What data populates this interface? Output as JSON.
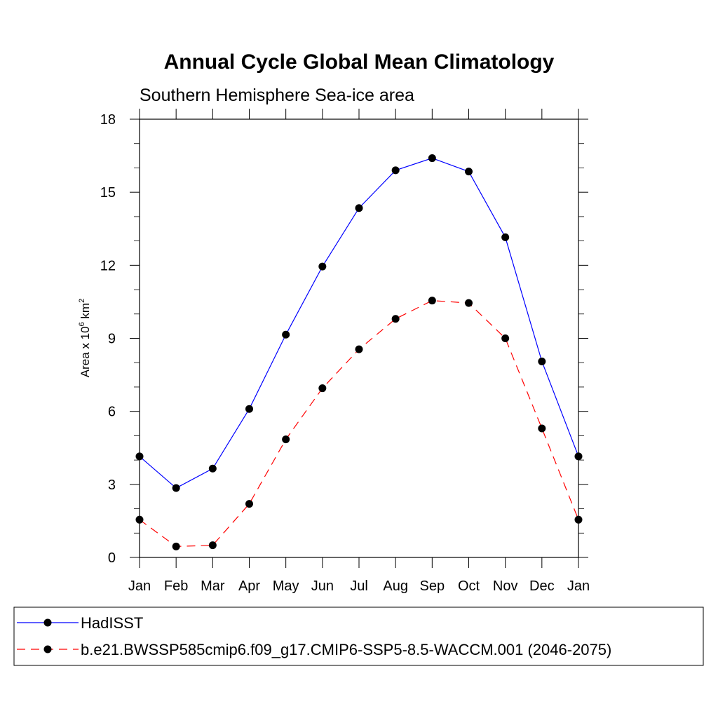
{
  "chart_data": {
    "type": "line",
    "title": "Annual Cycle Global Mean Climatology",
    "subtitle": "Southern Hemisphere Sea-ice area",
    "ylabel": {
      "prefix": "Area x 10",
      "exp1": "6",
      "middle": " km",
      "exp2": "2"
    },
    "xlabel": "",
    "categories": [
      "Jan",
      "Feb",
      "Mar",
      "Apr",
      "May",
      "Jun",
      "Jul",
      "Aug",
      "Sep",
      "Oct",
      "Nov",
      "Dec",
      "Jan"
    ],
    "ylim": [
      0,
      18
    ],
    "yticks": [
      0,
      3,
      6,
      9,
      12,
      15,
      18
    ],
    "ytick_labels": [
      "0",
      "3",
      "6",
      "9",
      "12",
      "15",
      "18"
    ],
    "grid": false,
    "legend_position": "bottom",
    "series": [
      {
        "name": "HadISST",
        "color": "#0000ff",
        "dash": "solid",
        "values": [
          4.15,
          2.85,
          3.65,
          6.1,
          9.15,
          11.95,
          14.35,
          15.9,
          16.4,
          15.85,
          13.15,
          8.05,
          4.15
        ]
      },
      {
        "name": "b.e21.BWSSP585cmip6.f09_g17.CMIP6-SSP5-8.5-WACCM.001 (2046-2075)",
        "color": "#ff0000",
        "dash": "dashed",
        "values": [
          1.55,
          0.45,
          0.5,
          2.2,
          4.85,
          6.95,
          8.55,
          9.8,
          10.55,
          10.45,
          9.0,
          5.3,
          1.55
        ]
      }
    ]
  }
}
